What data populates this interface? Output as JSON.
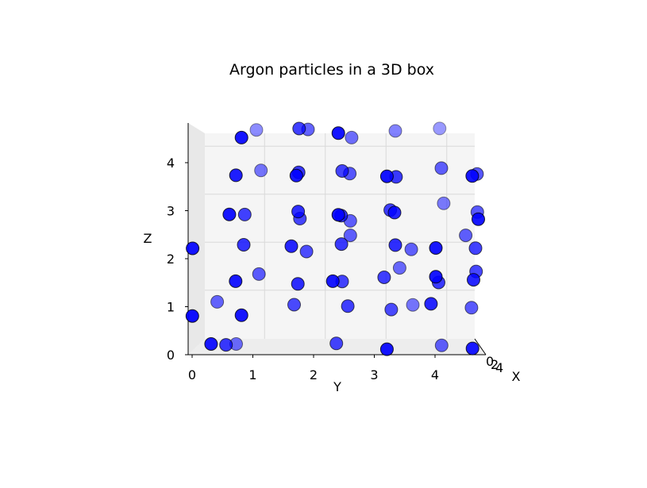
{
  "chart_data": {
    "type": "scatter",
    "projection": "3d",
    "title": "Argon particles in a 3D box",
    "xlabel": "X",
    "ylabel": "Y",
    "zlabel": "Z",
    "xticks": [
      "0",
      "2",
      "4"
    ],
    "yticks": [
      "0",
      "1",
      "2",
      "3",
      "4"
    ],
    "zticks": [
      "0",
      "1",
      "2",
      "3",
      "4"
    ],
    "xlim": [
      0,
      4.6
    ],
    "ylim": [
      0,
      4.6
    ],
    "zlim": [
      0,
      4.6
    ],
    "grid": true,
    "marker_color": "#0000ff",
    "edge_color": "#000000",
    "series": [
      {
        "name": "",
        "points": [
          {
            "x": 0.3,
            "y": 0.8,
            "z": 4.5
          },
          {
            "x": 1.5,
            "y": 1.7,
            "z": 4.6
          },
          {
            "x": 0.2,
            "y": 2.4,
            "z": 4.6
          },
          {
            "x": 3.5,
            "y": 3.2,
            "z": 4.4
          },
          {
            "x": 4.2,
            "y": 3.9,
            "z": 4.4
          },
          {
            "x": 3.8,
            "y": 0.9,
            "z": 4.4
          },
          {
            "x": 2.6,
            "y": 1.8,
            "z": 4.5
          },
          {
            "x": 3.0,
            "y": 2.5,
            "z": 4.3
          },
          {
            "x": 0.5,
            "y": 0.7,
            "z": 3.7
          },
          {
            "x": 3.2,
            "y": 1.0,
            "z": 3.6
          },
          {
            "x": 0.4,
            "y": 1.7,
            "z": 3.7
          },
          {
            "x": 1.3,
            "y": 1.7,
            "z": 3.7
          },
          {
            "x": 2.3,
            "y": 2.5,
            "z": 3.6
          },
          {
            "x": 1.7,
            "y": 2.4,
            "z": 3.7
          },
          {
            "x": 0.2,
            "y": 3.2,
            "z": 3.7
          },
          {
            "x": 1.4,
            "y": 3.3,
            "z": 3.6
          },
          {
            "x": 2.5,
            "y": 4.0,
            "z": 3.7
          },
          {
            "x": 0.3,
            "y": 4.6,
            "z": 3.7
          },
          {
            "x": 2.2,
            "y": 4.6,
            "z": 3.6
          },
          {
            "x": 0.3,
            "y": 0.6,
            "z": 2.9
          },
          {
            "x": 1.6,
            "y": 0.8,
            "z": 2.8
          },
          {
            "x": 1.1,
            "y": 1.7,
            "z": 2.9
          },
          {
            "x": 1.8,
            "y": 1.7,
            "z": 2.7
          },
          {
            "x": 0.2,
            "y": 2.4,
            "z": 2.9
          },
          {
            "x": 1.3,
            "y": 2.4,
            "z": 2.8
          },
          {
            "x": 2.5,
            "y": 2.5,
            "z": 2.6
          },
          {
            "x": 1.5,
            "y": 3.2,
            "z": 2.9
          },
          {
            "x": 0.8,
            "y": 3.3,
            "z": 2.9
          },
          {
            "x": 3.4,
            "y": 4.0,
            "z": 2.9
          },
          {
            "x": 0.3,
            "y": 4.7,
            "z": 2.8
          },
          {
            "x": 2.3,
            "y": 4.6,
            "z": 2.8
          },
          {
            "x": 0.2,
            "y": 0.0,
            "z": 2.2
          },
          {
            "x": 1.2,
            "y": 0.8,
            "z": 2.2
          },
          {
            "x": 0.8,
            "y": 1.6,
            "z": 2.2
          },
          {
            "x": 2.0,
            "y": 1.8,
            "z": 2.0
          },
          {
            "x": 1.4,
            "y": 2.4,
            "z": 2.2
          },
          {
            "x": 2.5,
            "y": 2.5,
            "z": 2.3
          },
          {
            "x": 1.1,
            "y": 3.3,
            "z": 2.2
          },
          {
            "x": 2.6,
            "y": 3.5,
            "z": 2.0
          },
          {
            "x": 0.3,
            "y": 4.0,
            "z": 2.2
          },
          {
            "x": 1.6,
            "y": 4.6,
            "z": 2.1
          },
          {
            "x": 2.5,
            "y": 4.4,
            "z": 2.3
          },
          {
            "x": 0.4,
            "y": 0.7,
            "z": 1.5
          },
          {
            "x": 2.4,
            "y": 1.0,
            "z": 1.5
          },
          {
            "x": 1.0,
            "y": 1.7,
            "z": 1.4
          },
          {
            "x": 0.4,
            "y": 2.3,
            "z": 1.5
          },
          {
            "x": 1.7,
            "y": 2.4,
            "z": 1.4
          },
          {
            "x": 1.5,
            "y": 3.1,
            "z": 1.5
          },
          {
            "x": 2.8,
            "y": 3.3,
            "z": 1.6
          },
          {
            "x": 0.3,
            "y": 4.0,
            "z": 1.6
          },
          {
            "x": 1.4,
            "y": 4.0,
            "z": 1.4
          },
          {
            "x": 1.8,
            "y": 4.6,
            "z": 1.6
          },
          {
            "x": 0.8,
            "y": 4.6,
            "z": 1.5
          },
          {
            "x": 0.1,
            "y": 0.0,
            "z": 0.8
          },
          {
            "x": 2.7,
            "y": 0.3,
            "z": 0.9
          },
          {
            "x": 0.3,
            "y": 0.8,
            "z": 0.8
          },
          {
            "x": 1.9,
            "y": 1.6,
            "z": 0.9
          },
          {
            "x": 1.5,
            "y": 2.5,
            "z": 0.9
          },
          {
            "x": 1.9,
            "y": 3.2,
            "z": 0.8
          },
          {
            "x": 0.8,
            "y": 3.9,
            "z": 1.0
          },
          {
            "x": 2.4,
            "y": 4.5,
            "z": 0.8
          },
          {
            "x": 3.2,
            "y": 3.5,
            "z": 0.8
          },
          {
            "x": 0.3,
            "y": 0.3,
            "z": 0.2
          },
          {
            "x": 1.4,
            "y": 0.5,
            "z": 0.1
          },
          {
            "x": 3.0,
            "y": 0.6,
            "z": 0.0
          },
          {
            "x": 1.8,
            "y": 2.3,
            "z": 0.1
          },
          {
            "x": 0.2,
            "y": 3.2,
            "z": 0.1
          },
          {
            "x": 2.6,
            "y": 4.0,
            "z": 0.0
          },
          {
            "x": 0.4,
            "y": 4.6,
            "z": 0.1
          },
          {
            "x": 3.6,
            "y": 4.7,
            "z": 0.0
          }
        ]
      }
    ]
  }
}
